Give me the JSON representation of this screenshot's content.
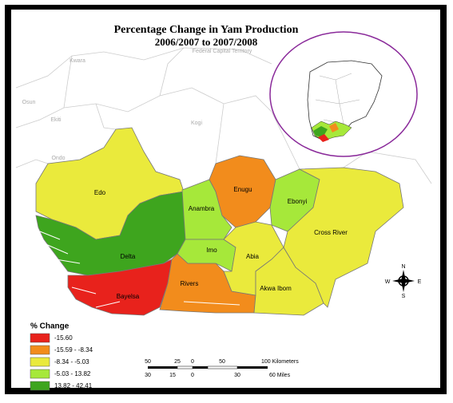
{
  "title": {
    "line1": "Percentage Change in Yam Production",
    "line2": "2006/2007 to 2007/2008"
  },
  "background_labels": [
    "Kwara",
    "Federal Capital Territory",
    "Osun",
    "Ekiti",
    "Kogi",
    "Ondo"
  ],
  "states": [
    {
      "name": "Edo",
      "color": "#eaea3c"
    },
    {
      "name": "Delta",
      "color": "#3ea51e"
    },
    {
      "name": "Bayelsa",
      "color": "#e8221c"
    },
    {
      "name": "Rivers",
      "color": "#f28c1c"
    },
    {
      "name": "Anambra",
      "color": "#a6e83a"
    },
    {
      "name": "Enugu",
      "color": "#f28c1c"
    },
    {
      "name": "Ebonyi",
      "color": "#a6e83a"
    },
    {
      "name": "Imo",
      "color": "#a6e83a"
    },
    {
      "name": "Abia",
      "color": "#eaea3c"
    },
    {
      "name": "Akwa Ibom",
      "color": "#eaea3c"
    },
    {
      "name": "Cross River",
      "color": "#eaea3c"
    }
  ],
  "legend": {
    "title": "% Change",
    "classes": [
      {
        "label": "-15.60",
        "color": "#e8221c"
      },
      {
        "label": "-15.59 - -8.34",
        "color": "#f28c1c"
      },
      {
        "label": "-8.34 - -5.03",
        "color": "#eaea3c"
      },
      {
        "label": "-5.03 - 13.82",
        "color": "#a6e83a"
      },
      {
        "label": "13.82 - 42.41",
        "color": "#3ea51e"
      }
    ]
  },
  "scale_bar": {
    "km_labels": [
      "50",
      "25",
      "0",
      "50",
      "100 Kilometers"
    ],
    "mile_labels": [
      "30",
      "15",
      "0",
      "30",
      "60 Miles"
    ]
  },
  "compass": {
    "n": "N",
    "e": "E",
    "s": "S",
    "w": "W"
  }
}
